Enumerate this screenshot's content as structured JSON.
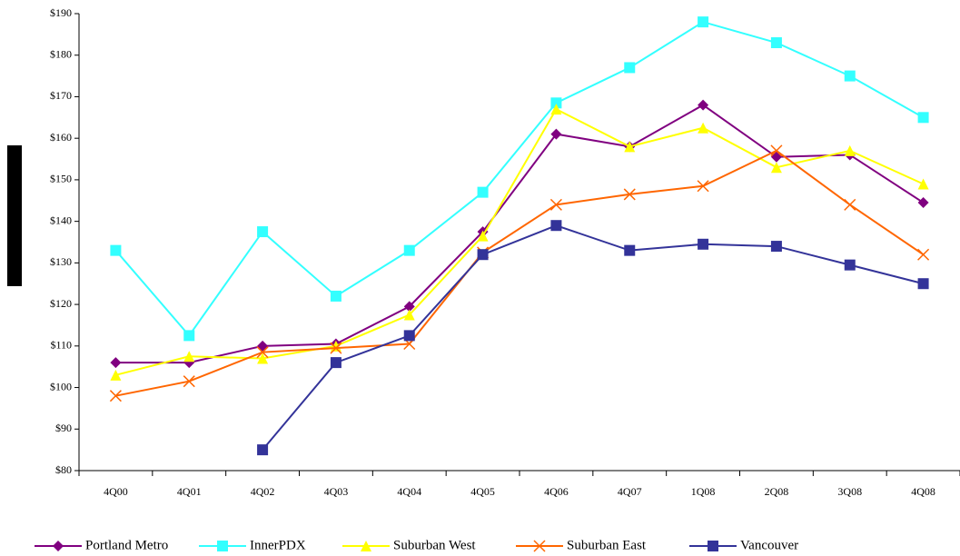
{
  "chart_data": {
    "type": "line",
    "categories": [
      "4Q00",
      "4Q01",
      "4Q02",
      "4Q03",
      "4Q04",
      "4Q05",
      "4Q06",
      "4Q07",
      "1Q08",
      "2Q08",
      "3Q08",
      "4Q08"
    ],
    "series": [
      {
        "name": "Portland Metro",
        "color": "#800080",
        "marker": "diamond",
        "values": [
          106,
          106,
          110,
          110.5,
          119.5,
          137.5,
          161,
          158,
          168,
          155.5,
          156,
          144.5
        ]
      },
      {
        "name": "InnerPDX",
        "color": "#33ffff",
        "marker": "square",
        "values": [
          133,
          112.5,
          137.5,
          122,
          133,
          147,
          168.5,
          177,
          188,
          183,
          175,
          165
        ]
      },
      {
        "name": "Suburban West",
        "color": "#ffff00",
        "marker": "triangle",
        "values": [
          103,
          107.5,
          107,
          110,
          117.5,
          136.5,
          167,
          158,
          162.5,
          153,
          157,
          149
        ]
      },
      {
        "name": "Suburban East",
        "color": "#ff6600",
        "marker": "x",
        "values": [
          98,
          101.5,
          108.5,
          109.5,
          110.5,
          132.5,
          144,
          146.5,
          148.5,
          157,
          144,
          132
        ]
      },
      {
        "name": "Vancouver",
        "color": "#333399",
        "marker": "square",
        "values": [
          null,
          null,
          85,
          106,
          112.5,
          132,
          139,
          133,
          134.5,
          134,
          129.5,
          125
        ]
      }
    ],
    "ylim": [
      80,
      190
    ],
    "yticks": [
      {
        "value": 80,
        "label": "$80"
      },
      {
        "value": 90,
        "label": "$90"
      },
      {
        "value": 100,
        "label": "$100"
      },
      {
        "value": 110,
        "label": "$110"
      },
      {
        "value": 120,
        "label": "$120"
      },
      {
        "value": 130,
        "label": "$130"
      },
      {
        "value": 140,
        "label": "$140"
      },
      {
        "value": 150,
        "label": "$150"
      },
      {
        "value": 160,
        "label": "$160"
      },
      {
        "value": 170,
        "label": "$170"
      },
      {
        "value": 180,
        "label": "$180"
      },
      {
        "value": 190,
        "label": "$190"
      }
    ],
    "grid": false,
    "legend": "bottom"
  }
}
